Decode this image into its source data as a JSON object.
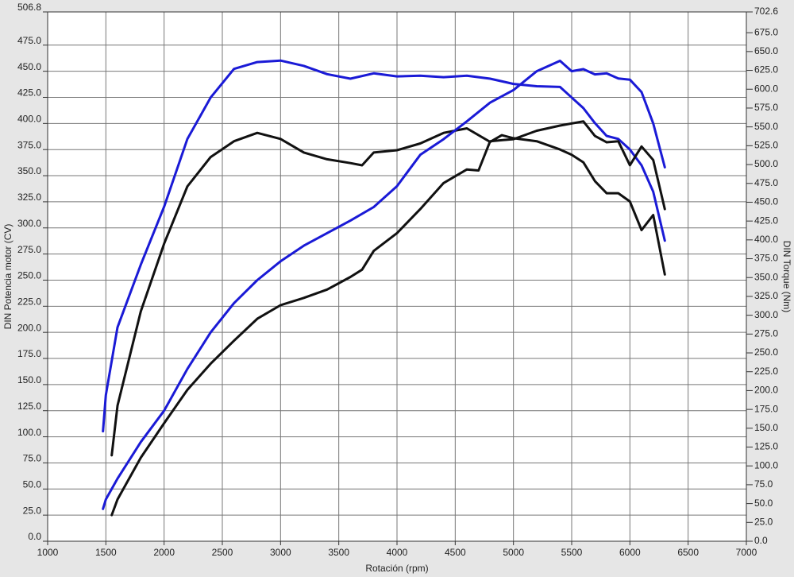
{
  "chart_data": {
    "type": "line",
    "xlabel": "Rotación (rpm)",
    "ylabel": "DIN Potencia motor (CV)",
    "y2label": "DIN Torque (Nm)",
    "xlim": [
      1000,
      7000
    ],
    "xticks": [
      1000,
      1500,
      2000,
      2500,
      3000,
      3500,
      4000,
      4500,
      5000,
      5500,
      6000,
      6500,
      7000
    ],
    "ylim": [
      0,
      506.8
    ],
    "yticks": [
      {
        "value": 0,
        "label": "0.0"
      },
      {
        "value": 25,
        "label": "25.0"
      },
      {
        "value": 50,
        "label": "50.0"
      },
      {
        "value": 75,
        "label": "75.0"
      },
      {
        "value": 100,
        "label": "100.0"
      },
      {
        "value": 125,
        "label": "125.0"
      },
      {
        "value": 150,
        "label": "150.0"
      },
      {
        "value": 175,
        "label": "175.0"
      },
      {
        "value": 200,
        "label": "200.0"
      },
      {
        "value": 225,
        "label": "225.0"
      },
      {
        "value": 250,
        "label": "250.0"
      },
      {
        "value": 275,
        "label": "275.0"
      },
      {
        "value": 300,
        "label": "300.0"
      },
      {
        "value": 325,
        "label": "325.0"
      },
      {
        "value": 350,
        "label": "350.0"
      },
      {
        "value": 375,
        "label": "375.0"
      },
      {
        "value": 400,
        "label": "400.0"
      },
      {
        "value": 425,
        "label": "425.0"
      },
      {
        "value": 450,
        "label": "450.0"
      },
      {
        "value": 475,
        "label": "475.0"
      },
      {
        "value": 506.8,
        "label": "506.8"
      }
    ],
    "y2lim": [
      0,
      702.6
    ],
    "y2ticks": [
      {
        "value": 0,
        "label": "0.0"
      },
      {
        "value": 25,
        "label": "25.0"
      },
      {
        "value": 50,
        "label": "50.0"
      },
      {
        "value": 75,
        "label": "75.0"
      },
      {
        "value": 100,
        "label": "100.0"
      },
      {
        "value": 125,
        "label": "125.0"
      },
      {
        "value": 150,
        "label": "150.0"
      },
      {
        "value": 175,
        "label": "175.0"
      },
      {
        "value": 200,
        "label": "200.0"
      },
      {
        "value": 225,
        "label": "225.0"
      },
      {
        "value": 250,
        "label": "250.0"
      },
      {
        "value": 275,
        "label": "275.0"
      },
      {
        "value": 300,
        "label": "300.0"
      },
      {
        "value": 325,
        "label": "325.0"
      },
      {
        "value": 350,
        "label": "350.0"
      },
      {
        "value": 375,
        "label": "375.0"
      },
      {
        "value": 400,
        "label": "400.0"
      },
      {
        "value": 425,
        "label": "425.0"
      },
      {
        "value": 450,
        "label": "450.0"
      },
      {
        "value": 475,
        "label": "475.0"
      },
      {
        "value": 500,
        "label": "500.0"
      },
      {
        "value": 525,
        "label": "525.0"
      },
      {
        "value": 550,
        "label": "550.0"
      },
      {
        "value": 575,
        "label": "575.0"
      },
      {
        "value": 600,
        "label": "600.0"
      },
      {
        "value": 625,
        "label": "625.0"
      },
      {
        "value": 650,
        "label": "650.0"
      },
      {
        "value": 675,
        "label": "675.0"
      },
      {
        "value": 702.6,
        "label": "702.6"
      }
    ],
    "grid": true,
    "series": [
      {
        "color": "#1a1ad6",
        "axis": "y2",
        "x": [
          1475,
          1500,
          1600,
          1800,
          2000,
          2200,
          2400,
          2600,
          2800,
          3000,
          3200,
          3400,
          3600,
          3800,
          4000,
          4200,
          4400,
          4600,
          4800,
          5000,
          5200,
          5400,
          5500,
          5600,
          5700,
          5800,
          5900,
          6000,
          6100,
          6200,
          6300
        ],
        "values": [
          146,
          194,
          284,
          367,
          444,
          534,
          589,
          627,
          636,
          638,
          631,
          620,
          614,
          621,
          617,
          618,
          616,
          618,
          614,
          607,
          604,
          603,
          589,
          575,
          555,
          538,
          534,
          520,
          499,
          464,
          399
        ]
      },
      {
        "color": "#111111",
        "axis": "y2",
        "x": [
          1550,
          1600,
          1800,
          2000,
          2200,
          2400,
          2600,
          2800,
          3000,
          3200,
          3400,
          3600,
          3700,
          3800,
          4000,
          4200,
          4400,
          4600,
          4800,
          4900,
          5000,
          5200,
          5400,
          5500,
          5600,
          5700,
          5800,
          5900,
          6000,
          6100,
          6200,
          6300
        ],
        "values": [
          114,
          180,
          305,
          395,
          471,
          510,
          531,
          542,
          534,
          516,
          507,
          502,
          499,
          516,
          519,
          528,
          542,
          548,
          530,
          539,
          535,
          531,
          520,
          513,
          503,
          478,
          462,
          462,
          451,
          413,
          433,
          354
        ]
      },
      {
        "color": "#1a1ad6",
        "x": [
          1475,
          1500,
          1600,
          1800,
          2000,
          2200,
          2400,
          2600,
          2800,
          3000,
          3200,
          3400,
          3600,
          3800,
          4000,
          4200,
          4400,
          4600,
          4800,
          5000,
          5200,
          5400,
          5500,
          5600,
          5700,
          5800,
          5900,
          6000,
          6100,
          6200,
          6300
        ],
        "values": [
          31,
          40,
          60,
          95,
          125,
          165,
          200,
          228,
          250,
          268,
          283,
          295,
          307,
          320,
          340,
          370,
          385,
          402,
          420,
          432,
          450,
          460,
          450,
          452,
          447,
          448,
          443,
          442,
          430,
          400,
          358
        ]
      },
      {
        "color": "#111111",
        "x": [
          1550,
          1600,
          1800,
          2000,
          2200,
          2400,
          2600,
          2800,
          3000,
          3200,
          3400,
          3600,
          3700,
          3800,
          4000,
          4200,
          4400,
          4600,
          4700,
          4800,
          5000,
          5200,
          5400,
          5600,
          5700,
          5800,
          5900,
          6000,
          6100,
          6200,
          6300
        ],
        "values": [
          25,
          40,
          80,
          113,
          145,
          170,
          192,
          213,
          226,
          233,
          241,
          253,
          260,
          278,
          295,
          318,
          343,
          356,
          355,
          383,
          385,
          393,
          398,
          402,
          388,
          382,
          383,
          360,
          378,
          365,
          318
        ]
      }
    ]
  }
}
